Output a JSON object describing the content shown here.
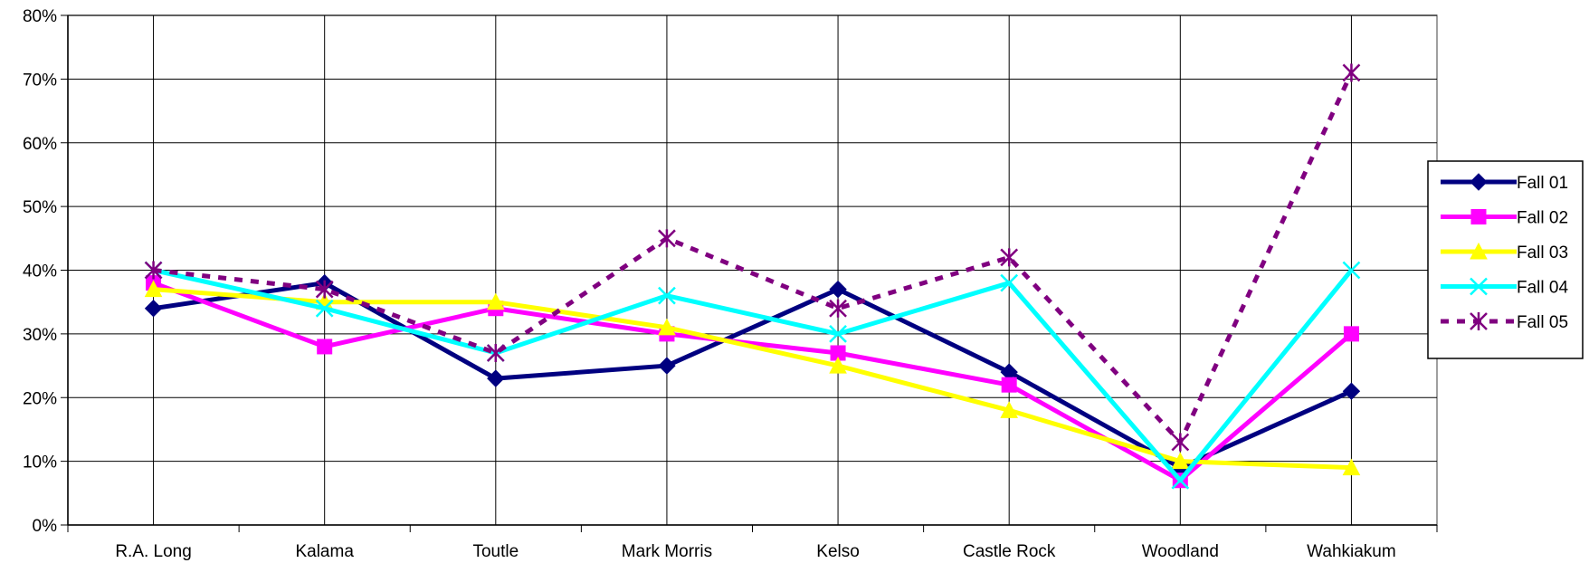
{
  "chart_data": {
    "type": "line",
    "title": "",
    "xlabel": "",
    "ylabel": "",
    "categories": [
      "R.A. Long",
      "Kalama",
      "Toutle",
      "Mark Morris",
      "Kelso",
      "Castle Rock",
      "Woodland",
      "Wahkiakum"
    ],
    "ylim": [
      0,
      80
    ],
    "y_ticks": [
      0,
      10,
      20,
      30,
      40,
      50,
      60,
      70,
      80
    ],
    "y_tick_labels": [
      "0%",
      "10%",
      "20%",
      "30%",
      "40%",
      "50%",
      "60%",
      "70%",
      "80%"
    ],
    "grid": true,
    "legend_position": "right",
    "series": [
      {
        "name": "Fall 01",
        "color": "#000080",
        "marker": "diamond",
        "dash": false,
        "values": [
          34,
          38,
          23,
          25,
          37,
          24,
          9,
          21
        ]
      },
      {
        "name": "Fall 02",
        "color": "#FF00FF",
        "marker": "square",
        "dash": false,
        "values": [
          38,
          28,
          34,
          30,
          27,
          22,
          7,
          30
        ]
      },
      {
        "name": "Fall 03",
        "color": "#FFFF00",
        "marker": "triangle",
        "dash": false,
        "values": [
          37,
          35,
          35,
          31,
          25,
          18,
          10,
          9
        ]
      },
      {
        "name": "Fall 04",
        "color": "#00FFFF",
        "marker": "x",
        "dash": false,
        "values": [
          40,
          34,
          27,
          36,
          30,
          38,
          7,
          40
        ]
      },
      {
        "name": "Fall 05",
        "color": "#800080",
        "marker": "asterisk",
        "dash": true,
        "values": [
          40,
          37,
          27,
          45,
          34,
          42,
          13,
          71
        ]
      }
    ]
  }
}
